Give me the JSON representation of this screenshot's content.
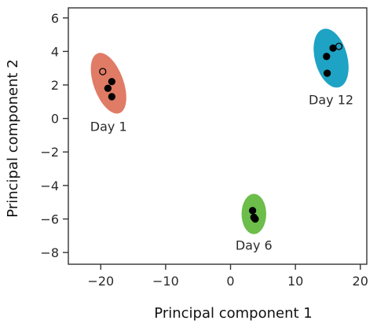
{
  "chart_data": {
    "type": "scatter",
    "xlabel": "Principal component 1",
    "ylabel": "Principal component 2",
    "xlim": [
      -25,
      21
    ],
    "ylim": [
      -8.7,
      6.6
    ],
    "xticks": [
      -20,
      -10,
      0,
      10,
      20
    ],
    "yticks": [
      6,
      4,
      2,
      0,
      -2,
      -4,
      -6,
      -8
    ],
    "xtick_labels": [
      "−20",
      "−10",
      "0",
      "10",
      "20"
    ],
    "ytick_labels": [
      "6",
      "4",
      "2",
      "0",
      "−2",
      "−4",
      "−6",
      "−8"
    ],
    "grid": false,
    "clusters": [
      {
        "label": "Day 1",
        "color": "#e07b66",
        "ellipse": {
          "cx": -18.8,
          "cy": 2.1,
          "rx_data": 2.3,
          "ry_data": 1.9,
          "rotation_deg": -20
        },
        "points": [
          {
            "x": -19.7,
            "y": 2.8,
            "filled": false
          },
          {
            "x": -18.3,
            "y": 2.2,
            "filled": true
          },
          {
            "x": -18.9,
            "y": 1.8,
            "filled": true
          },
          {
            "x": -18.3,
            "y": 1.3,
            "filled": true
          }
        ]
      },
      {
        "label": "Day 12",
        "color": "#1fa3c4",
        "ellipse": {
          "cx": 15.5,
          "cy": 3.6,
          "rx_data": 2.5,
          "ry_data": 1.8,
          "rotation_deg": -15
        },
        "points": [
          {
            "x": 16.7,
            "y": 4.3,
            "filled": false
          },
          {
            "x": 15.8,
            "y": 4.2,
            "filled": true
          },
          {
            "x": 14.8,
            "y": 3.7,
            "filled": true
          },
          {
            "x": 14.9,
            "y": 2.7,
            "filled": true
          }
        ]
      },
      {
        "label": "Day 6",
        "color": "#6cbd4a",
        "ellipse": {
          "cx": 3.6,
          "cy": -5.7,
          "rx_data": 1.9,
          "ry_data": 1.2,
          "rotation_deg": 0
        },
        "points": [
          {
            "x": 3.4,
            "y": -5.5,
            "filled": true
          },
          {
            "x": 3.6,
            "y": -5.9,
            "filled": true
          },
          {
            "x": 3.8,
            "y": -6.0,
            "filled": true
          }
        ]
      }
    ]
  }
}
